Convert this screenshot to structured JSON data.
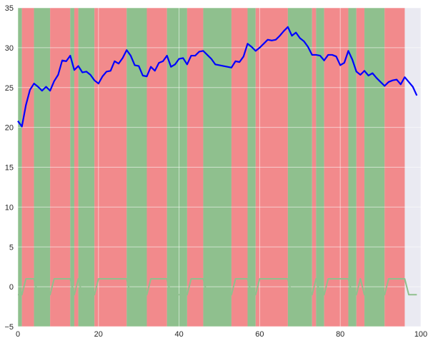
{
  "chart_data": {
    "type": "line",
    "title": "",
    "xlabel": "",
    "ylabel": "",
    "xlim": [
      0,
      100
    ],
    "ylim": [
      -5,
      35
    ],
    "grid": true,
    "background_color": "#EAEAF2",
    "x_ticks": [
      0,
      20,
      40,
      60,
      80,
      100
    ],
    "y_ticks": [
      -5,
      0,
      5,
      10,
      15,
      20,
      25,
      30,
      35
    ],
    "x_tick_labels": [
      "0",
      "20",
      "40",
      "60",
      "80",
      "100"
    ],
    "y_tick_labels": [
      "−5",
      "0",
      "5",
      "10",
      "15",
      "20",
      "25",
      "30",
      "35"
    ],
    "regions": {
      "colors": {
        "green": "#8FC08E",
        "red": "#F28A8C"
      },
      "spans": [
        {
          "start": 0,
          "end": 1,
          "state": "green"
        },
        {
          "start": 1,
          "end": 4,
          "state": "red"
        },
        {
          "start": 4,
          "end": 8,
          "state": "green"
        },
        {
          "start": 8,
          "end": 13,
          "state": "red"
        },
        {
          "start": 13,
          "end": 14,
          "state": "green"
        },
        {
          "start": 14,
          "end": 15,
          "state": "red"
        },
        {
          "start": 15,
          "end": 19,
          "state": "green"
        },
        {
          "start": 19,
          "end": 27,
          "state": "red"
        },
        {
          "start": 27,
          "end": 32,
          "state": "green"
        },
        {
          "start": 32,
          "end": 37,
          "state": "red"
        },
        {
          "start": 37,
          "end": 42,
          "state": "green"
        },
        {
          "start": 42,
          "end": 46,
          "state": "red"
        },
        {
          "start": 46,
          "end": 53,
          "state": "green"
        },
        {
          "start": 53,
          "end": 57,
          "state": "red"
        },
        {
          "start": 57,
          "end": 59,
          "state": "green"
        },
        {
          "start": 59,
          "end": 67,
          "state": "red"
        },
        {
          "start": 67,
          "end": 73,
          "state": "green"
        },
        {
          "start": 73,
          "end": 74,
          "state": "red"
        },
        {
          "start": 74,
          "end": 76,
          "state": "green"
        },
        {
          "start": 76,
          "end": 82,
          "state": "red"
        },
        {
          "start": 82,
          "end": 84,
          "state": "green"
        },
        {
          "start": 84,
          "end": 86,
          "state": "red"
        },
        {
          "start": 86,
          "end": 91,
          "state": "green"
        },
        {
          "start": 91,
          "end": 96,
          "state": "red"
        }
      ]
    },
    "series": [
      {
        "color": "#0000FF",
        "x": [
          0,
          1,
          2,
          3,
          4,
          5,
          6,
          7,
          8,
          9,
          10,
          11,
          12,
          13,
          14,
          15,
          16,
          17,
          18,
          19,
          20,
          21,
          22,
          23,
          24,
          25,
          26,
          27,
          28,
          29,
          30,
          31,
          32,
          33,
          34,
          35,
          36,
          37,
          38,
          39,
          40,
          41,
          42,
          43,
          44,
          45,
          46,
          47,
          48,
          49,
          50,
          51,
          52,
          53,
          54,
          55,
          56,
          57,
          58,
          59,
          60,
          61,
          62,
          63,
          64,
          65,
          66,
          67,
          68,
          69,
          70,
          71,
          72,
          73,
          74,
          75,
          76,
          77,
          78,
          79,
          80,
          81,
          82,
          83,
          84,
          85,
          86,
          87,
          88,
          89,
          90,
          91,
          92,
          93,
          94,
          95,
          96,
          97,
          98,
          99
        ],
        "y": [
          20.8,
          20.1,
          22.8,
          24.7,
          25.5,
          25.1,
          24.6,
          25.1,
          24.6,
          25.8,
          26.6,
          28.4,
          28.3,
          29.0,
          27.2,
          27.7,
          26.9,
          27.0,
          26.6,
          25.9,
          25.5,
          26.4,
          27.0,
          27.1,
          28.3,
          28.0,
          28.7,
          29.7,
          29.0,
          27.8,
          27.7,
          26.5,
          26.4,
          27.6,
          27.1,
          28.1,
          28.3,
          29.0,
          27.6,
          27.9,
          28.6,
          28.7,
          27.9,
          29.0,
          29.0,
          29.5,
          29.6,
          29.1,
          28.6,
          27.9,
          27.8,
          27.7,
          27.6,
          27.5,
          28.3,
          28.2,
          28.9,
          30.5,
          30.1,
          29.6,
          30.0,
          30.5,
          31.0,
          30.9,
          31.0,
          31.5,
          32.1,
          32.6,
          31.5,
          31.9,
          31.2,
          30.8,
          30.1,
          29.1,
          29.1,
          29.0,
          28.4,
          29.1,
          29.1,
          28.9,
          27.8,
          28.1,
          29.6,
          28.5,
          27.0,
          26.6,
          27.1,
          26.5,
          26.8,
          26.2,
          25.7,
          25.2,
          25.7,
          25.9,
          26.0,
          25.4,
          26.3,
          25.7,
          25.1,
          24.0
        ]
      },
      {
        "color": "#8FC08E",
        "x": [
          0,
          1,
          2,
          3,
          4,
          5,
          6,
          7,
          8,
          9,
          10,
          11,
          12,
          13,
          14,
          15,
          16,
          17,
          18,
          19,
          20,
          21,
          22,
          23,
          24,
          25,
          26,
          27,
          28,
          29,
          30,
          31,
          32,
          33,
          34,
          35,
          36,
          37,
          38,
          39,
          40,
          41,
          42,
          43,
          44,
          45,
          46,
          47,
          48,
          49,
          50,
          51,
          52,
          53,
          54,
          55,
          56,
          57,
          58,
          59,
          60,
          61,
          62,
          63,
          64,
          65,
          66,
          67,
          68,
          69,
          70,
          71,
          72,
          73,
          74,
          75,
          76,
          77,
          78,
          79,
          80,
          81,
          82,
          83,
          84,
          85,
          86,
          87,
          88,
          89,
          90,
          91,
          92,
          93,
          94,
          95,
          96,
          97,
          98,
          99
        ],
        "y": [
          -1,
          -1,
          1,
          1,
          1,
          -1,
          -1,
          -1,
          -1,
          1,
          1,
          1,
          1,
          1,
          -1,
          1,
          -1,
          -1,
          -1,
          -1,
          1,
          1,
          1,
          1,
          1,
          1,
          1,
          1,
          -1,
          -1,
          -1,
          -1,
          -1,
          1,
          1,
          1,
          1,
          1,
          -1,
          -1,
          -1,
          -1,
          -1,
          1,
          1,
          1,
          1,
          -1,
          -1,
          -1,
          -1,
          -1,
          -1,
          -1,
          1,
          1,
          1,
          1,
          -1,
          -1,
          1,
          1,
          1,
          1,
          1,
          1,
          1,
          1,
          -1,
          -1,
          -1,
          -1,
          -1,
          -1,
          1,
          -1,
          -1,
          1,
          1,
          1,
          1,
          1,
          1,
          -1,
          -1,
          1,
          -1,
          -1,
          -1,
          -1,
          -1,
          -1,
          1,
          1,
          1,
          1,
          1,
          -1,
          -1,
          -1
        ]
      }
    ]
  }
}
